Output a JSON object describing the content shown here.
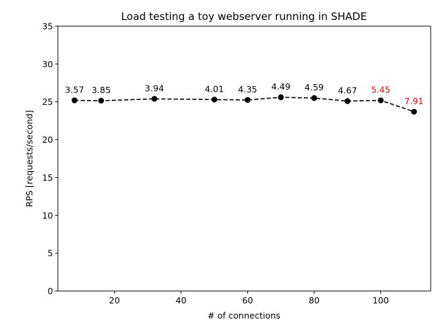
{
  "chart_data": {
    "type": "line",
    "title": "Load testing a toy webserver running in SHADE",
    "xlabel": "# of connections",
    "ylabel": "RPS [requests/second]",
    "xlim": [
      3,
      115
    ],
    "ylim": [
      0,
      35
    ],
    "xticks": [
      20,
      40,
      60,
      80,
      100
    ],
    "yticks": [
      0,
      5,
      10,
      15,
      20,
      25,
      30,
      35
    ],
    "grid": false,
    "line_style": "dashed",
    "marker": "circle",
    "line_color": "#000000",
    "series": [
      {
        "x": [
          8,
          16,
          32,
          50,
          60,
          70,
          80,
          90,
          100,
          110
        ],
        "y": [
          25.2,
          25.15,
          25.4,
          25.3,
          25.25,
          25.6,
          25.5,
          25.1,
          25.2,
          23.7
        ],
        "labels": [
          "3.57",
          "3.85",
          "3.94",
          "4.01",
          "4.35",
          "4.49",
          "4.59",
          "4.67",
          "5.45",
          "7.91"
        ],
        "label_colors": [
          "#000000",
          "#000000",
          "#000000",
          "#000000",
          "#000000",
          "#000000",
          "#000000",
          "#000000",
          "#ff0000",
          "#ff0000"
        ]
      }
    ]
  }
}
